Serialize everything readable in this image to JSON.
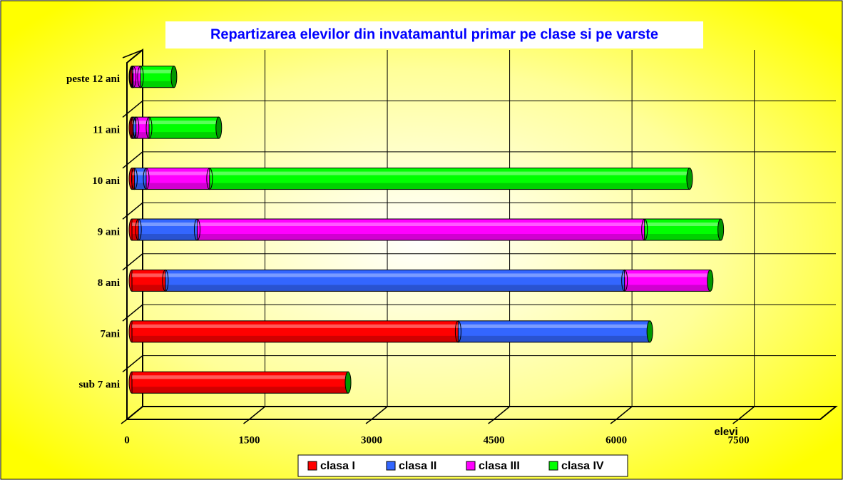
{
  "chart_data": {
    "type": "bar",
    "orientation": "horizontal",
    "stacked": true,
    "title": "Repartizarea elevilor din invatamantul primar pe clase si pe varste",
    "x_label": "elevi",
    "categories": [
      "sub 7 ani",
      "7ani",
      "8 ani",
      "9 ani",
      "10 ani",
      "11 ani",
      "peste 12 ani"
    ],
    "series": [
      {
        "name": "clasa I",
        "color": "#ff0000",
        "values": [
          2650,
          4000,
          410,
          80,
          30,
          15,
          5
        ]
      },
      {
        "name": "clasa II",
        "color": "#3366ff",
        "values": [
          0,
          2350,
          5630,
          720,
          145,
          35,
          10
        ]
      },
      {
        "name": "clasa III",
        "color": "#ff00ff",
        "values": [
          0,
          0,
          1050,
          5485,
          777,
          160,
          90
        ]
      },
      {
        "name": "clasa IV",
        "color": "#00ff00",
        "values": [
          0,
          0,
          0,
          935,
          5886,
          855,
          410
        ]
      }
    ],
    "xlim": [
      0,
      8500
    ],
    "xticks": [
      0,
      1500,
      3000,
      4500,
      6000,
      7500
    ],
    "grid": true,
    "legend": "bottom"
  }
}
